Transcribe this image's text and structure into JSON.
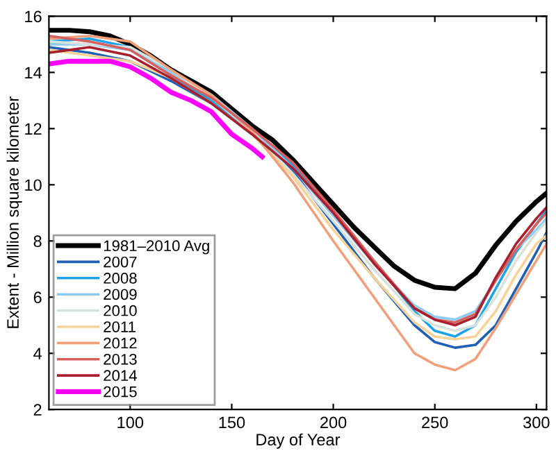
{
  "chart_data": {
    "type": "line",
    "xlabel": "Day of Year",
    "ylabel": "Extent - Million square kilometer",
    "xlim": [
      60,
      305
    ],
    "ylim": [
      2,
      16
    ],
    "xticks": [
      100,
      150,
      200,
      250,
      300
    ],
    "yticks": [
      2,
      4,
      6,
      8,
      10,
      12,
      14,
      16
    ],
    "grid": false,
    "legend": "bottom left",
    "marker": "none",
    "line_style": "solid",
    "x": [
      60,
      80,
      100,
      120,
      140,
      160,
      180,
      200,
      220,
      240,
      250,
      260,
      270,
      280,
      290,
      300,
      305
    ],
    "series": [
      {
        "name": "1981–2010 Avg",
        "color": "#000000",
        "x": [
          60,
          70,
          80,
          90,
          100,
          110,
          120,
          130,
          140,
          150,
          160,
          170,
          180,
          190,
          200,
          210,
          220,
          230,
          240,
          250,
          260,
          270,
          280,
          290,
          300,
          305
        ],
        "values": [
          15.5,
          15.5,
          15.45,
          15.3,
          15.0,
          14.6,
          14.1,
          13.7,
          13.3,
          12.7,
          12.1,
          11.6,
          10.9,
          10.1,
          9.3,
          8.5,
          7.8,
          7.1,
          6.6,
          6.35,
          6.3,
          6.85,
          7.85,
          8.7,
          9.4,
          9.7
        ]
      },
      {
        "name": "2007",
        "color": "#1f5fb4",
        "values": [
          14.9,
          14.7,
          14.4,
          13.7,
          12.9,
          11.8,
          10.5,
          8.6,
          6.7,
          5.0,
          4.4,
          4.2,
          4.3,
          5.0,
          6.3,
          7.6,
          8.3
        ]
      },
      {
        "name": "2008",
        "color": "#1ea3e6",
        "values": [
          15.1,
          15.2,
          14.9,
          13.9,
          13.0,
          11.9,
          10.7,
          9.0,
          7.3,
          5.5,
          4.8,
          4.6,
          5.0,
          6.3,
          7.6,
          8.6,
          9.1
        ]
      },
      {
        "name": "2009",
        "color": "#8fcbec",
        "values": [
          15.0,
          15.0,
          14.8,
          14.0,
          13.2,
          12.0,
          10.6,
          8.9,
          7.2,
          5.7,
          5.3,
          5.2,
          5.5,
          6.6,
          7.7,
          8.4,
          8.8
        ]
      },
      {
        "name": "2010",
        "color": "#d8e2dc",
        "values": [
          15.1,
          15.0,
          14.9,
          14.1,
          13.1,
          11.9,
          10.4,
          8.7,
          7.0,
          5.4,
          5.0,
          4.8,
          5.0,
          6.0,
          7.3,
          8.3,
          8.7
        ]
      },
      {
        "name": "2011",
        "color": "#f7d39a",
        "values": [
          14.8,
          14.6,
          14.4,
          13.8,
          12.9,
          11.8,
          10.3,
          8.4,
          6.7,
          5.1,
          4.6,
          4.5,
          4.6,
          5.5,
          6.8,
          7.9,
          8.2
        ]
      },
      {
        "name": "2012",
        "color": "#f0a07a",
        "values": [
          15.2,
          15.3,
          15.1,
          14.1,
          13.2,
          11.9,
          10.1,
          8.0,
          6.0,
          4.0,
          3.6,
          3.4,
          3.8,
          4.9,
          6.1,
          7.3,
          7.9
        ]
      },
      {
        "name": "2013",
        "color": "#d65f5f",
        "values": [
          15.3,
          15.1,
          14.8,
          13.9,
          13.1,
          12.0,
          10.8,
          9.1,
          7.3,
          5.6,
          5.2,
          5.1,
          5.4,
          6.6,
          7.7,
          8.6,
          9.0
        ]
      },
      {
        "name": "2014",
        "color": "#a8202f",
        "values": [
          14.7,
          14.9,
          14.6,
          13.8,
          12.9,
          11.8,
          10.6,
          9.0,
          7.2,
          5.6,
          5.2,
          5.0,
          5.3,
          6.7,
          7.9,
          8.8,
          9.2
        ]
      },
      {
        "name": "2015",
        "color": "#ff00ff",
        "x": [
          60,
          70,
          80,
          90,
          100,
          110,
          120,
          130,
          140,
          150,
          160,
          165
        ],
        "values": [
          14.3,
          14.4,
          14.4,
          14.4,
          14.2,
          13.8,
          13.3,
          13.0,
          12.6,
          11.8,
          11.3,
          11.0
        ]
      }
    ]
  }
}
